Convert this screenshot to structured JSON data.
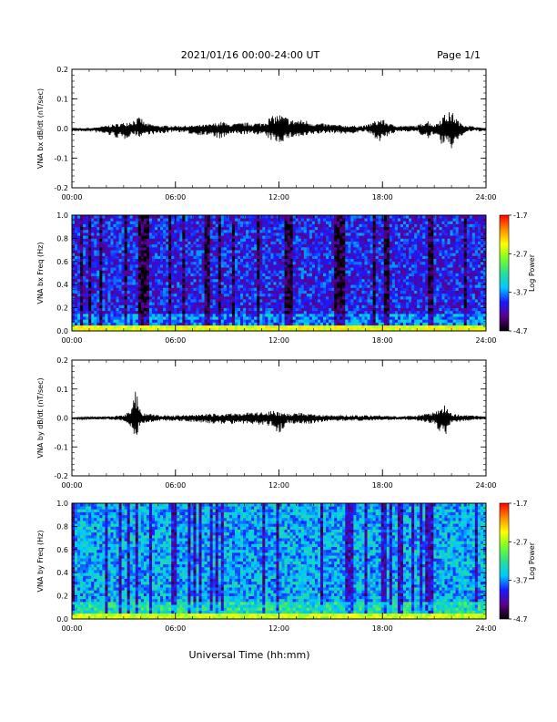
{
  "header": {
    "title": "2021/01/16  00:00-24:00 UT",
    "page": "Page 1/1"
  },
  "footer": {
    "xlabel": "Universal Time (hh:mm)"
  },
  "colors": {
    "trace": "#000000",
    "colormap": [
      "#000000",
      "#5a008a",
      "#1a1aff",
      "#00c8ff",
      "#28e090",
      "#78ff28",
      "#ffff00",
      "#ff8c00",
      "#ff0000"
    ]
  },
  "chart_data": [
    {
      "type": "line",
      "ylabel": "VNA bx dB/dt (nT/sec)",
      "xlim": [
        0,
        24
      ],
      "ylim": [
        -0.2,
        0.2
      ],
      "xticks": [
        "00:00",
        "06:00",
        "12:00",
        "18:00",
        "24:00"
      ],
      "yticks": [
        "-0.2",
        "-0.1",
        "0.0",
        "0.1",
        "0.2"
      ],
      "x": [
        0,
        1,
        2,
        3,
        3.5,
        4,
        4.2,
        5,
        6,
        7,
        8,
        8.8,
        9,
        10,
        11,
        11.5,
        12,
        12.8,
        13.5,
        14,
        15,
        16,
        17,
        17.9,
        18.5,
        19,
        20,
        20.6,
        21,
        21.5,
        22,
        22.5,
        23,
        24
      ],
      "y": [
        0.0,
        0.0,
        0.01,
        0.02,
        0.03,
        0.04,
        0.02,
        0.01,
        0.01,
        0.01,
        0.015,
        0.025,
        0.015,
        0.02,
        0.02,
        0.04,
        0.05,
        0.03,
        0.03,
        0.02,
        0.015,
        0.01,
        0.01,
        0.035,
        0.015,
        0.01,
        0.01,
        0.03,
        0.01,
        0.045,
        0.06,
        0.02,
        0.01,
        0.0
      ],
      "envelope_min": [
        -0.01,
        -0.01,
        -0.02,
        -0.04,
        -0.02,
        -0.03,
        -0.02,
        -0.02,
        -0.01,
        -0.02,
        -0.025,
        -0.04,
        -0.02,
        -0.02,
        -0.02,
        -0.04,
        -0.05,
        -0.03,
        -0.03,
        -0.02,
        -0.015,
        -0.02,
        -0.01,
        -0.045,
        -0.02,
        -0.01,
        -0.01,
        -0.04,
        -0.02,
        -0.06,
        -0.07,
        -0.03,
        -0.01,
        -0.01
      ]
    },
    {
      "type": "heatmap",
      "ylabel": "VNA bx Freq (Hz)",
      "xlim": [
        0,
        24
      ],
      "ylim": [
        0,
        1
      ],
      "xticks": [
        "00:00",
        "06:00",
        "12:00",
        "18:00",
        "24:00"
      ],
      "yticks": [
        "0.0",
        "0.2",
        "0.4",
        "0.6",
        "0.8",
        "1.0"
      ],
      "colorbar": {
        "label": "Log Power",
        "ticks": [
          "-1.7",
          "-2.7",
          "-3.7",
          "-4.7"
        ],
        "range": [
          -4.7,
          -1.7
        ]
      },
      "base_level": -4.0,
      "low_freq_level": -2.5
    },
    {
      "type": "line",
      "ylabel": "VNA by dB/dt (nT/sec)",
      "xlim": [
        0,
        24
      ],
      "ylim": [
        -0.2,
        0.2
      ],
      "xticks": [
        "00:00",
        "06:00",
        "12:00",
        "18:00",
        "24:00"
      ],
      "yticks": [
        "-0.2",
        "-0.1",
        "0.0",
        "0.1",
        "0.2"
      ],
      "x": [
        0,
        1,
        2,
        3,
        3.4,
        3.7,
        4,
        5,
        6,
        7,
        8,
        9,
        10,
        11,
        11.6,
        12,
        12.5,
        13,
        14,
        15,
        16,
        17,
        18,
        19,
        20,
        21,
        21.6,
        22,
        23,
        24
      ],
      "y": [
        0.0,
        0.005,
        0.005,
        0.01,
        0.025,
        0.1,
        0.02,
        0.01,
        0.01,
        0.01,
        0.015,
        0.015,
        0.02,
        0.02,
        0.025,
        0.02,
        0.015,
        0.02,
        0.015,
        0.01,
        0.01,
        0.01,
        0.01,
        0.005,
        0.01,
        0.02,
        0.05,
        0.015,
        0.01,
        0.005
      ],
      "envelope_min": [
        -0.005,
        -0.005,
        -0.005,
        -0.01,
        -0.03,
        -0.07,
        -0.02,
        -0.01,
        -0.01,
        -0.015,
        -0.02,
        -0.02,
        -0.02,
        -0.025,
        -0.03,
        -0.055,
        -0.02,
        -0.02,
        -0.02,
        -0.01,
        -0.01,
        -0.01,
        -0.01,
        -0.005,
        -0.01,
        -0.02,
        -0.075,
        -0.015,
        -0.01,
        -0.005
      ]
    },
    {
      "type": "heatmap",
      "ylabel": "VNA by Freq (Hz)",
      "xlim": [
        0,
        24
      ],
      "ylim": [
        0,
        1
      ],
      "xticks": [
        "00:00",
        "06:00",
        "12:00",
        "18:00",
        "24:00"
      ],
      "yticks": [
        "0.0",
        "0.2",
        "0.4",
        "0.6",
        "0.8",
        "1.0"
      ],
      "colorbar": {
        "label": "Log Power",
        "ticks": [
          "-1.7",
          "-2.7",
          "-3.7",
          "-4.7"
        ],
        "range": [
          -4.7,
          -1.7
        ]
      },
      "base_level": -3.6,
      "low_freq_level": -2.6
    }
  ]
}
